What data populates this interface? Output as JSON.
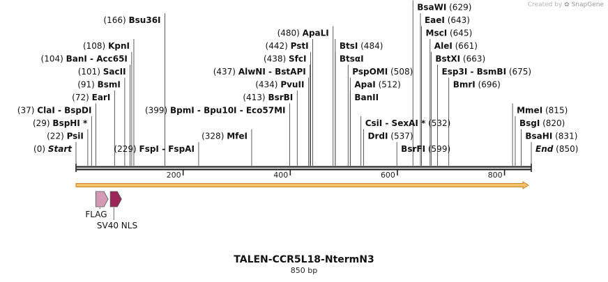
{
  "credit": {
    "prefix": "Created by",
    "brand": "SnapGene"
  },
  "title": "TALEN-CCR5L18-NtermN3",
  "size_label": "850 bp",
  "sequence_length": 850,
  "colors": {
    "backbone": "#222222",
    "orf_fill": "#f5c06a",
    "orf_stroke": "#c8841f",
    "flag": "#d39bb5",
    "nls": "#9b2557"
  },
  "ticks": [
    {
      "value": 200,
      "label": "200"
    },
    {
      "value": 400,
      "label": "400"
    },
    {
      "value": 600,
      "label": "600"
    },
    {
      "value": 800,
      "label": "800"
    }
  ],
  "features": [
    {
      "name": "FLAG",
      "start": 37,
      "end": 60,
      "color_key": "flag"
    },
    {
      "name": "SV40 NLS",
      "start": 64,
      "end": 85,
      "color_key": "nls"
    }
  ],
  "sites": [
    {
      "num": "(0)",
      "name": "Start",
      "pos": 0,
      "italic": true,
      "row": 0,
      "side": "left"
    },
    {
      "num": "(22)",
      "name": "PsiI",
      "pos": 22,
      "row": 1,
      "side": "left"
    },
    {
      "num": "(29)",
      "name": "BspHI *",
      "pos": 29,
      "row": 2,
      "side": "left"
    },
    {
      "num": "(37)",
      "name": "ClaI  -  BspDI",
      "pos": 37,
      "row": 3,
      "side": "left"
    },
    {
      "num": "(72)",
      "name": "EarI",
      "pos": 72,
      "row": 4,
      "side": "left"
    },
    {
      "num": "(91)",
      "name": "BsmI",
      "pos": 91,
      "row": 5,
      "side": "left"
    },
    {
      "num": "(101)",
      "name": "SacII",
      "pos": 101,
      "row": 6,
      "side": "left"
    },
    {
      "num": "(104)",
      "name": "BanI  -  Acc65I",
      "pos": 104,
      "row": 7,
      "side": "left"
    },
    {
      "num": "(108)",
      "name": "KpnI",
      "pos": 108,
      "row": 8,
      "side": "left"
    },
    {
      "num": "(166)",
      "name": "Bsu36I",
      "pos": 166,
      "row": 10,
      "side": "left"
    },
    {
      "num": "(229)",
      "name": "FspI  -  FspAI",
      "pos": 229,
      "row": 0,
      "side": "left"
    },
    {
      "num": "(399)",
      "name": "BpmI  -  Bpu10I  -  Eco57MI",
      "pos": 399,
      "row": 3,
      "side": "left"
    },
    {
      "num": "(328)",
      "name": "MfeI",
      "pos": 328,
      "row": 1,
      "side": "left"
    },
    {
      "num": "(413)",
      "name": "BsrBI",
      "pos": 413,
      "row": 4,
      "side": "left"
    },
    {
      "num": "(434)",
      "name": "PvuII",
      "pos": 434,
      "row": 5,
      "side": "left"
    },
    {
      "num": "(437)",
      "name": "AlwNI  -  BstAPI",
      "pos": 437,
      "row": 6,
      "side": "left"
    },
    {
      "num": "(438)",
      "name": "SfcI",
      "pos": 438,
      "row": 7,
      "side": "left"
    },
    {
      "num": "(442)",
      "name": "PstI",
      "pos": 442,
      "row": 8,
      "side": "left"
    },
    {
      "num": "(480)",
      "name": "ApaLI",
      "pos": 480,
      "row": 9,
      "side": "left"
    },
    {
      "num": "(484)",
      "name": "BtsI",
      "pos": 484,
      "row": 8,
      "side": "right"
    },
    {
      "num": "",
      "name": "BtsαI",
      "pos": 484,
      "row": 7,
      "side": "right"
    },
    {
      "num": "(508)",
      "name": "PspOMI",
      "pos": 508,
      "row": 6,
      "side": "right"
    },
    {
      "num": "(512)",
      "name": "ApaI",
      "pos": 512,
      "row": 5,
      "side": "right"
    },
    {
      "num": "",
      "name": "BanII",
      "pos": 512,
      "row": 4,
      "side": "right"
    },
    {
      "num": "(532)",
      "name": "CsiI  -  SexAI *",
      "pos": 532,
      "row": 2,
      "side": "right"
    },
    {
      "num": "(537)",
      "name": "DrdI",
      "pos": 537,
      "row": 1,
      "side": "right"
    },
    {
      "num": "(599)",
      "name": "BsrFI",
      "pos": 599,
      "row": 0,
      "side": "right"
    },
    {
      "num": "(629)",
      "name": "BsaWI",
      "pos": 629,
      "row": 11,
      "side": "right"
    },
    {
      "num": "(643)",
      "name": "EaeI",
      "pos": 643,
      "row": 10,
      "side": "right"
    },
    {
      "num": "(645)",
      "name": "MscI",
      "pos": 645,
      "row": 9,
      "side": "right"
    },
    {
      "num": "(661)",
      "name": "AleI",
      "pos": 661,
      "row": 8,
      "side": "right"
    },
    {
      "num": "(663)",
      "name": "BstXI",
      "pos": 663,
      "row": 7,
      "side": "right"
    },
    {
      "num": "(675)",
      "name": "Esp3I  -  BsmBI",
      "pos": 675,
      "row": 6,
      "side": "right"
    },
    {
      "num": "(696)",
      "name": "BmrI",
      "pos": 696,
      "row": 5,
      "side": "right"
    },
    {
      "num": "(815)",
      "name": "MmeI",
      "pos": 815,
      "row": 3,
      "side": "right"
    },
    {
      "num": "(820)",
      "name": "BsgI",
      "pos": 820,
      "row": 2,
      "side": "right"
    },
    {
      "num": "(831)",
      "name": "BsaHI",
      "pos": 831,
      "row": 1,
      "side": "right"
    },
    {
      "num": "(850)",
      "name": "End",
      "pos": 850,
      "italic": true,
      "row": 0,
      "side": "right"
    }
  ]
}
